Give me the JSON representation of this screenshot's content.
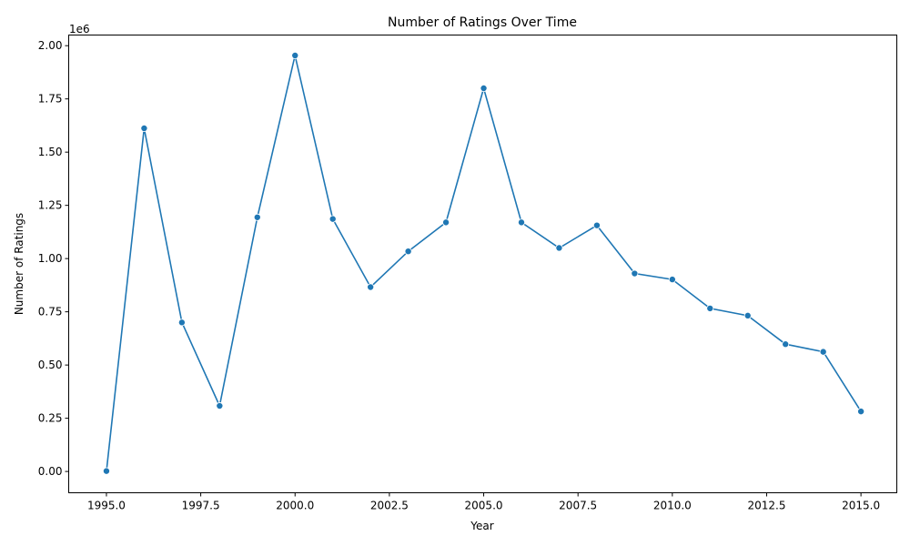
{
  "chart_data": {
    "type": "line",
    "title": "Number of Ratings Over Time",
    "xlabel": "Year",
    "ylabel": "Number of Ratings",
    "y_offset_text": "1e6",
    "x": [
      1995,
      1996,
      1997,
      1998,
      1999,
      2000,
      2001,
      2002,
      2003,
      2004,
      2005,
      2006,
      2007,
      2008,
      2009,
      2010,
      2011,
      2012,
      2013,
      2014,
      2015
    ],
    "series": [
      {
        "values": [
          2000,
          1612000,
          700000,
          308000,
          1194000,
          1954000,
          1186000,
          866000,
          1034000,
          1170000,
          1800000,
          1170000,
          1050000,
          1156000,
          930000,
          902000,
          766000,
          732000,
          598000,
          562000,
          282000
        ],
        "color": "#1f77b4"
      }
    ],
    "xlim": [
      1994.0,
      2015.95
    ],
    "ylim": [
      -0.1,
      2.05
    ],
    "x_ticks": [
      1995.0,
      1997.5,
      2000.0,
      2002.5,
      2005.0,
      2007.5,
      2010.0,
      2012.5,
      2015.0
    ],
    "x_tick_labels": [
      "1995.0",
      "1997.5",
      "2000.0",
      "2002.5",
      "2005.0",
      "2007.5",
      "2010.0",
      "2012.5",
      "2015.0"
    ],
    "y_ticks": [
      0.0,
      0.25,
      0.5,
      0.75,
      1.0,
      1.25,
      1.5,
      1.75,
      2.0
    ],
    "y_tick_labels": [
      "0.00",
      "0.25",
      "0.50",
      "0.75",
      "1.00",
      "1.25",
      "1.50",
      "1.75",
      "2.00"
    ],
    "grid": false,
    "markers": true
  }
}
